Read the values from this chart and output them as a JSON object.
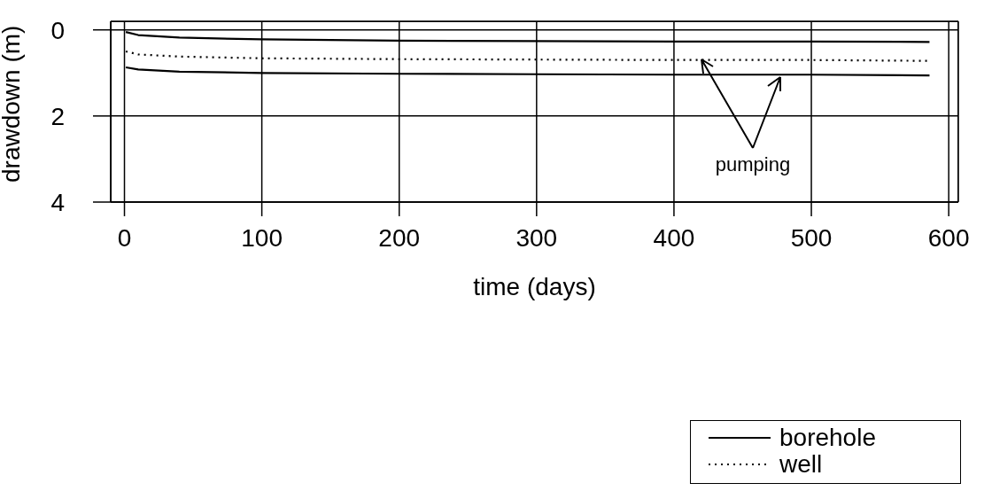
{
  "chart_data": {
    "type": "line",
    "xlabel": "time (days)",
    "ylabel": "drawdown (m)",
    "annotations": [
      {
        "text": "pumping",
        "x": 420,
        "y": 0.69
      }
    ],
    "x": [
      1,
      10,
      40,
      100,
      200,
      300,
      400,
      500,
      586
    ],
    "series": [
      {
        "name": "borehole",
        "color": "#000000",
        "line_style": "solid",
        "values": [
          0.05,
          0.12,
          0.18,
          0.22,
          0.25,
          0.26,
          0.27,
          0.27,
          0.28
        ]
      },
      {
        "name": "well",
        "color": "#000000",
        "line_style": "dotted",
        "values": [
          0.5,
          0.57,
          0.62,
          0.66,
          0.68,
          0.69,
          0.7,
          0.7,
          0.72
        ]
      },
      {
        "color": "#000000",
        "line_style": "solid",
        "values": [
          0.87,
          0.92,
          0.97,
          1.0,
          1.02,
          1.03,
          1.04,
          1.04,
          1.06
        ]
      }
    ],
    "xlim": [
      -10,
      607
    ],
    "xticks": [
      0,
      100,
      200,
      300,
      400,
      500,
      600
    ],
    "ylim": [
      4,
      -0.2
    ],
    "yticks": [
      0,
      2,
      4
    ],
    "grid": true,
    "legend": "bottom right",
    "marker": "none"
  }
}
